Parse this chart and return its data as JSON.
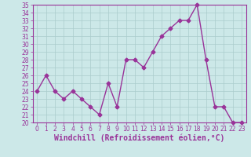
{
  "x": [
    0,
    1,
    2,
    3,
    4,
    5,
    6,
    7,
    8,
    9,
    10,
    11,
    12,
    13,
    14,
    15,
    16,
    17,
    18,
    19,
    20,
    21,
    22,
    23
  ],
  "y": [
    24,
    26,
    24,
    23,
    24,
    23,
    22,
    21,
    25,
    22,
    28,
    28,
    27,
    29,
    31,
    32,
    33,
    33,
    35,
    28,
    22,
    22,
    20,
    20
  ],
  "line_color": "#993399",
  "marker": "D",
  "marker_size": 2.5,
  "bg_color": "#cce8e8",
  "grid_color": "#aacccc",
  "xlabel": "Windchill (Refroidissement éolien,°C)",
  "xlabel_fontsize": 7,
  "ylim": [
    20,
    35
  ],
  "xlim": [
    -0.5,
    23.5
  ],
  "yticks": [
    20,
    21,
    22,
    23,
    24,
    25,
    26,
    27,
    28,
    29,
    30,
    31,
    32,
    33,
    34,
    35
  ],
  "xticks": [
    0,
    1,
    2,
    3,
    4,
    5,
    6,
    7,
    8,
    9,
    10,
    11,
    12,
    13,
    14,
    15,
    16,
    17,
    18,
    19,
    20,
    21,
    22,
    23
  ],
  "tick_color": "#993399",
  "tick_fontsize": 5.5,
  "line_width": 1.0,
  "spine_color": "#993399"
}
